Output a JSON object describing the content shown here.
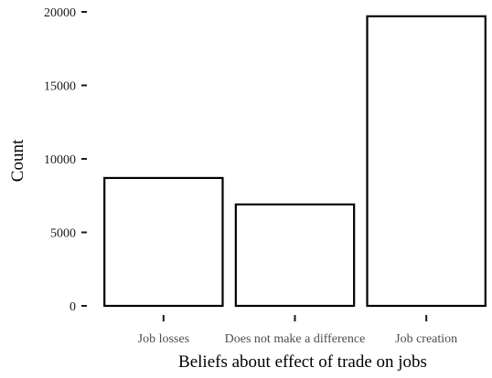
{
  "chart_data": {
    "type": "bar",
    "categories": [
      "Job losses",
      "Does not make a difference",
      "Job creation"
    ],
    "values": [
      8700,
      6900,
      19700
    ],
    "xlabel": "Beliefs about effect of trade on jobs",
    "ylabel": "Count",
    "ylim": [
      0,
      20000
    ],
    "yticks": [
      0,
      5000,
      10000,
      15000,
      20000
    ],
    "grid": false,
    "bar_fill": "#ffffff",
    "bar_stroke": "#000000"
  }
}
